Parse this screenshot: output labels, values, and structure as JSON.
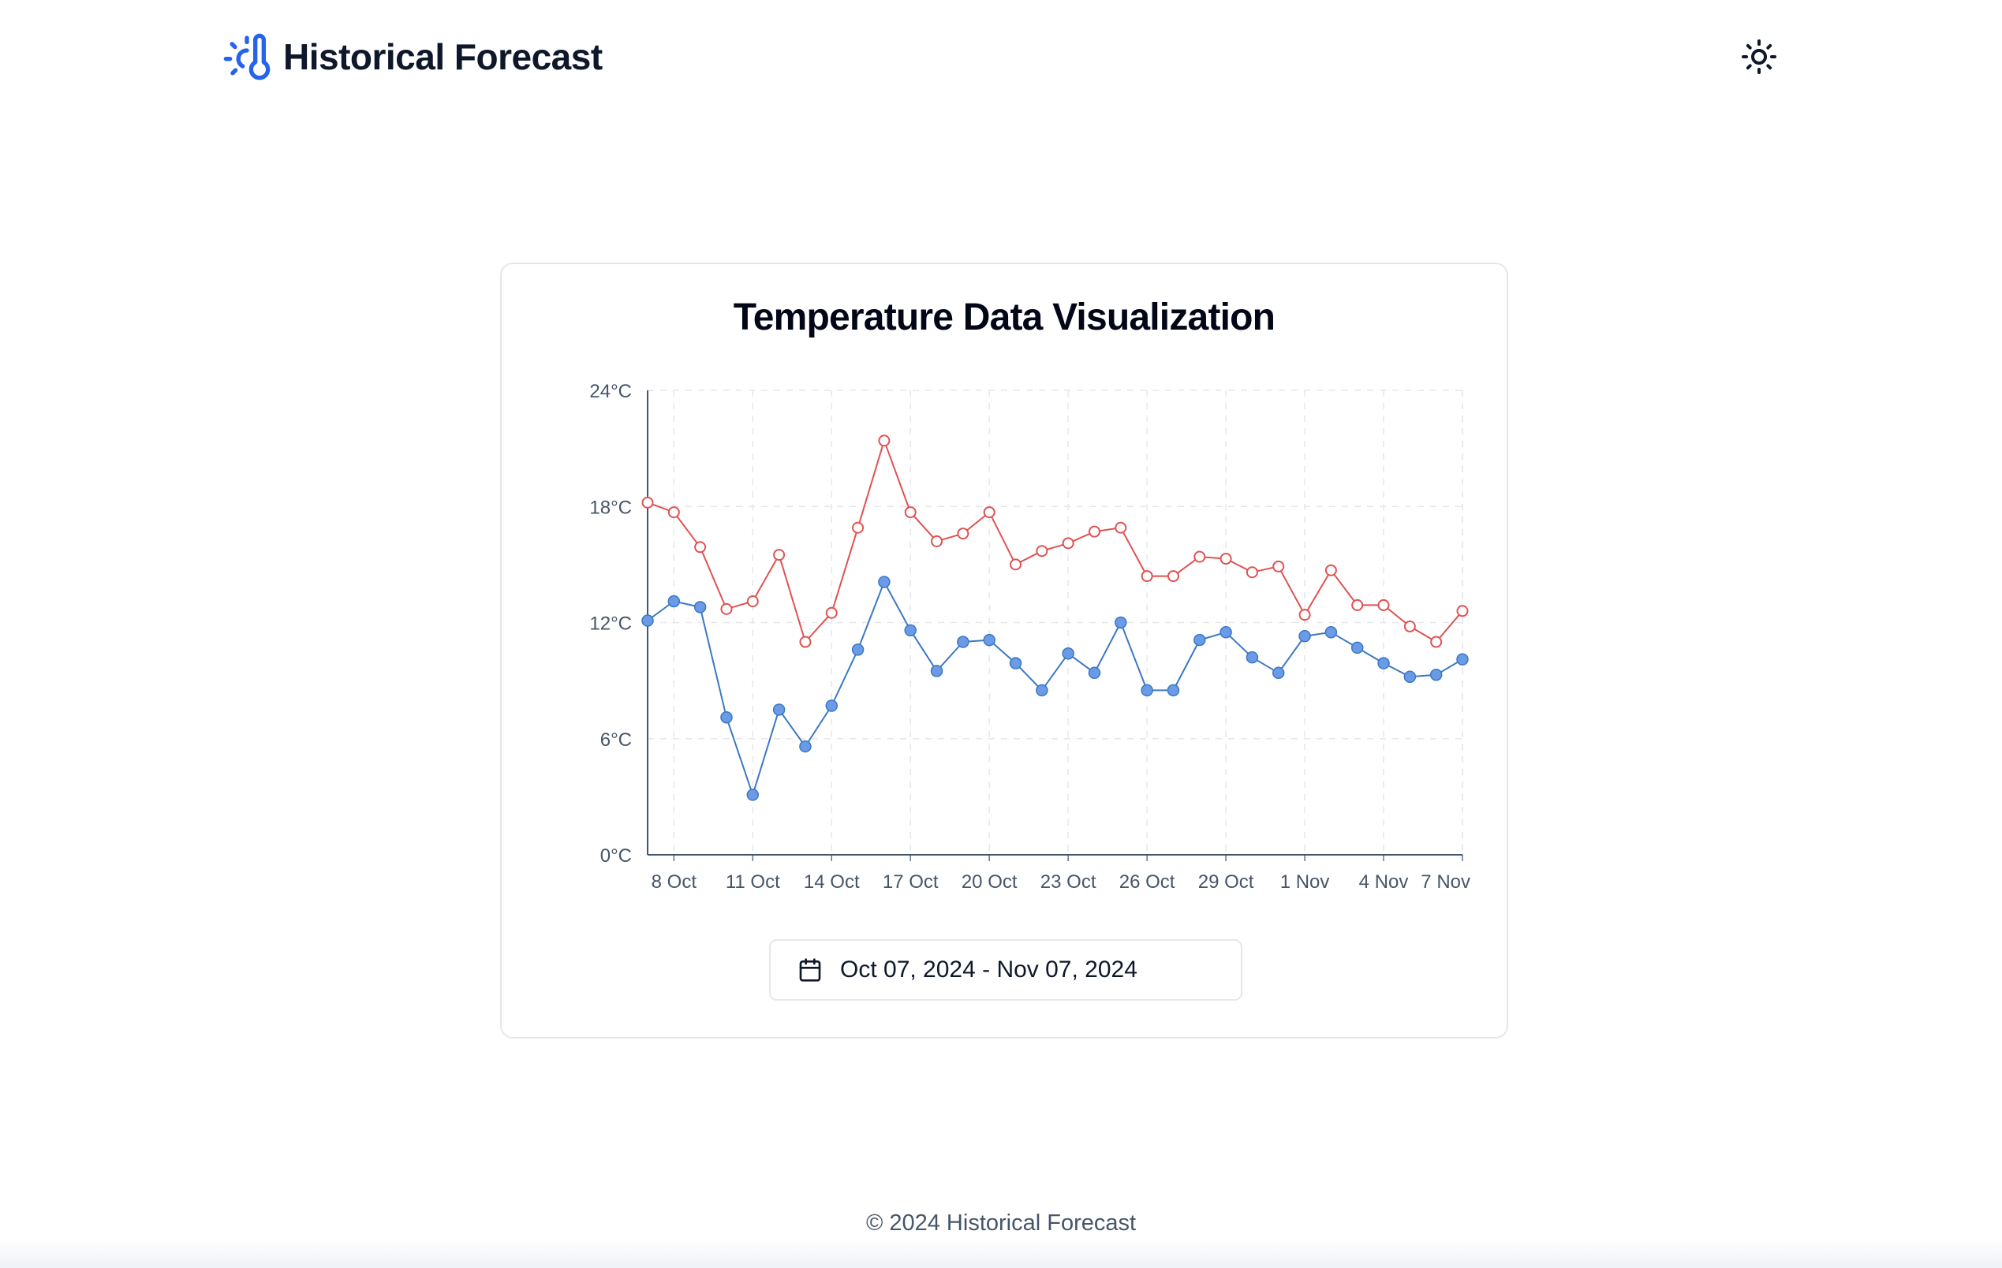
{
  "header": {
    "app_title": "Historical Forecast",
    "logo_icon": "thermometer-sun-icon",
    "theme_toggle_icon": "sun-icon"
  },
  "card": {
    "title": "Temperature Data Visualization"
  },
  "date_picker": {
    "icon": "calendar-icon",
    "value": "Oct 07, 2024 - Nov 07, 2024"
  },
  "footer": {
    "text": "© 2024 Historical Forecast"
  },
  "colors": {
    "accent": "#2563eb",
    "max_series": "#e05252",
    "min_series": "#3b78c4",
    "min_marker_fill": "#6b9be6",
    "axis_text": "#475569",
    "grid": "#e5e7eb"
  },
  "chart_data": {
    "type": "line",
    "title": "Temperature Data Visualization",
    "x_start": "2024-10-07",
    "x_end": "2024-11-07",
    "x_tick_labels": [
      "8 Oct",
      "11 Oct",
      "14 Oct",
      "17 Oct",
      "20 Oct",
      "23 Oct",
      "26 Oct",
      "29 Oct",
      "1 Nov",
      "4 Nov",
      "7 Nov"
    ],
    "y_tick_labels": [
      "0°C",
      "6°C",
      "12°C",
      "18°C",
      "24°C"
    ],
    "ylim": [
      0,
      24
    ],
    "grid": true,
    "legend": "none",
    "x": [
      "2024-10-07",
      "2024-10-08",
      "2024-10-09",
      "2024-10-10",
      "2024-10-11",
      "2024-10-12",
      "2024-10-13",
      "2024-10-14",
      "2024-10-15",
      "2024-10-16",
      "2024-10-17",
      "2024-10-18",
      "2024-10-19",
      "2024-10-20",
      "2024-10-21",
      "2024-10-22",
      "2024-10-23",
      "2024-10-24",
      "2024-10-25",
      "2024-10-26",
      "2024-10-27",
      "2024-10-28",
      "2024-10-29",
      "2024-10-30",
      "2024-10-31",
      "2024-11-01",
      "2024-11-02",
      "2024-11-03",
      "2024-11-04",
      "2024-11-05",
      "2024-11-06",
      "2024-11-07"
    ],
    "series": [
      {
        "color": "#e05252",
        "marker": "hollow",
        "values": [
          18.2,
          17.7,
          15.9,
          12.7,
          13.1,
          15.5,
          11.0,
          12.5,
          16.9,
          21.4,
          17.7,
          16.2,
          16.6,
          17.7,
          15.0,
          15.7,
          16.1,
          16.7,
          16.9,
          14.4,
          14.4,
          15.4,
          15.3,
          14.6,
          14.9,
          12.4,
          14.7,
          12.9,
          12.9,
          11.8,
          11.0,
          12.6
        ]
      },
      {
        "color": "#3b78c4",
        "marker": "filled",
        "values": [
          12.1,
          13.1,
          12.8,
          7.1,
          3.1,
          7.5,
          5.6,
          7.7,
          10.6,
          14.1,
          11.6,
          9.5,
          11.0,
          11.1,
          9.9,
          8.5,
          10.4,
          9.4,
          12.0,
          8.5,
          8.5,
          11.1,
          11.5,
          10.2,
          9.4,
          11.3,
          11.5,
          10.7,
          9.9,
          9.2,
          9.3,
          10.1
        ]
      }
    ]
  }
}
